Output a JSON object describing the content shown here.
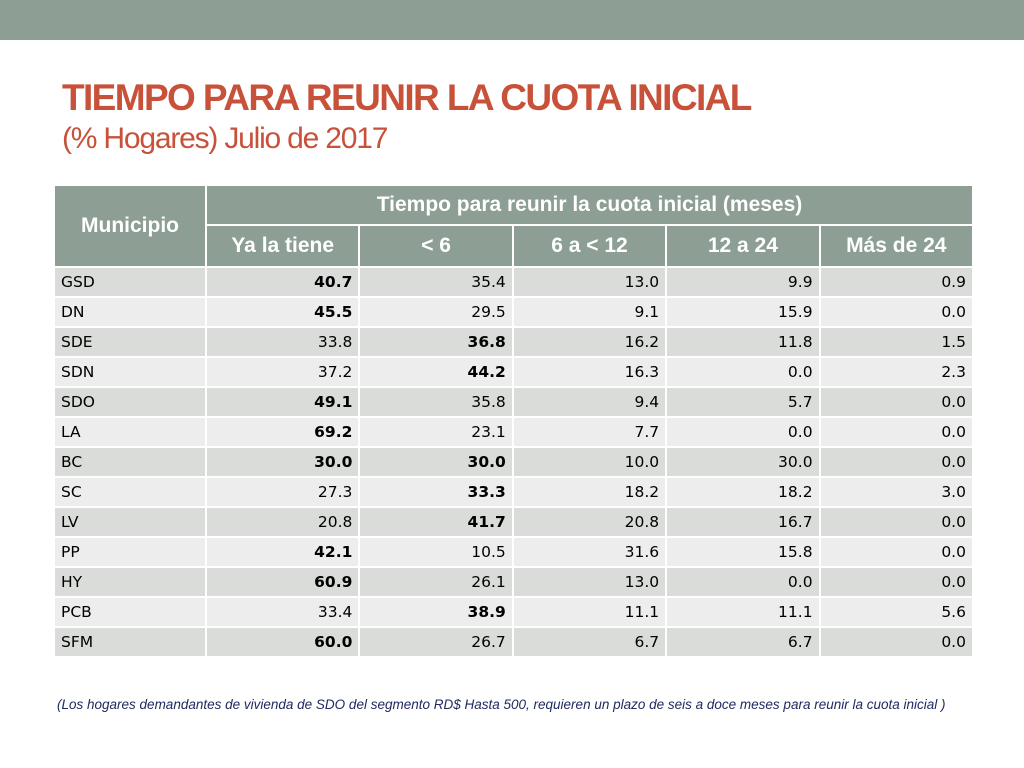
{
  "slide": {
    "title": "TIEMPO PARA REUNIR LA CUOTA INICIAL",
    "subtitle": "(% Hogares) Julio de 2017",
    "note": "(Los hogares demandantes de vivienda de SDO del segmento RD$ Hasta 500, requieren un plazo de seis a doce meses para reunir la cuota inicial )"
  },
  "colors": {
    "header_bg": "#8d9f95",
    "title": "#c8513a",
    "note": "#1f2a60"
  },
  "table": {
    "col0_header": "Municipio",
    "group_header": "Tiempo para reunir la cuota inicial (meses)",
    "columns": [
      "Ya la tiene",
      "< 6",
      "6 a < 12",
      "12 a 24",
      "Más de 24"
    ],
    "rows": [
      {
        "m": "GSD",
        "v": [
          "40.7",
          "35.4",
          "13.0",
          "9.9",
          "0.9"
        ],
        "bold": 0
      },
      {
        "m": "DN",
        "v": [
          "45.5",
          "29.5",
          "9.1",
          "15.9",
          "0.0"
        ],
        "bold": 0
      },
      {
        "m": "SDE",
        "v": [
          "33.8",
          "36.8",
          "16.2",
          "11.8",
          "1.5"
        ],
        "bold": 1
      },
      {
        "m": "SDN",
        "v": [
          "37.2",
          "44.2",
          "16.3",
          "0.0",
          "2.3"
        ],
        "bold": 1
      },
      {
        "m": "SDO",
        "v": [
          "49.1",
          "35.8",
          "9.4",
          "5.7",
          "0.0"
        ],
        "bold": 0
      },
      {
        "m": "LA",
        "v": [
          "69.2",
          "23.1",
          "7.7",
          "0.0",
          "0.0"
        ],
        "bold": 0
      },
      {
        "m": "BC",
        "v": [
          "30.0",
          "30.0",
          "10.0",
          "30.0",
          "0.0"
        ],
        "bold": [
          0,
          1
        ]
      },
      {
        "m": "SC",
        "v": [
          "27.3",
          "33.3",
          "18.2",
          "18.2",
          "3.0"
        ],
        "bold": 1
      },
      {
        "m": "LV",
        "v": [
          "20.8",
          "41.7",
          "20.8",
          "16.7",
          "0.0"
        ],
        "bold": 1
      },
      {
        "m": "PP",
        "v": [
          "42.1",
          "10.5",
          "31.6",
          "15.8",
          "0.0"
        ],
        "bold": 0
      },
      {
        "m": "HY",
        "v": [
          "60.9",
          "26.1",
          "13.0",
          "0.0",
          "0.0"
        ],
        "bold": 0
      },
      {
        "m": "PCB",
        "v": [
          "33.4",
          "38.9",
          "11.1",
          "11.1",
          "5.6"
        ],
        "bold": 1
      },
      {
        "m": "SFM",
        "v": [
          "60.0",
          "26.7",
          "6.7",
          "6.7",
          "0.0"
        ],
        "bold": 0
      }
    ]
  }
}
